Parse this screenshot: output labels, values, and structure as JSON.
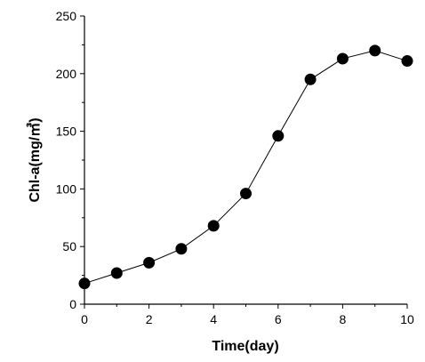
{
  "chart_data": {
    "type": "scatter",
    "xlabel": "Time(day)",
    "ylabel": "Chl-a(mg/㎥)",
    "xlim": [
      0,
      10
    ],
    "ylim": [
      0,
      250
    ],
    "xticks": [
      "0",
      "2",
      "4",
      "6",
      "8",
      "10"
    ],
    "yticks": [
      "0",
      "50",
      "100",
      "150",
      "200",
      "250"
    ],
    "grid": false,
    "series": [
      {
        "x": [
          0,
          1,
          2,
          3,
          4,
          5,
          6,
          7,
          8,
          9,
          10
        ],
        "y": [
          18,
          27,
          36,
          48,
          68,
          96,
          146,
          195,
          213,
          220,
          211
        ]
      }
    ]
  }
}
